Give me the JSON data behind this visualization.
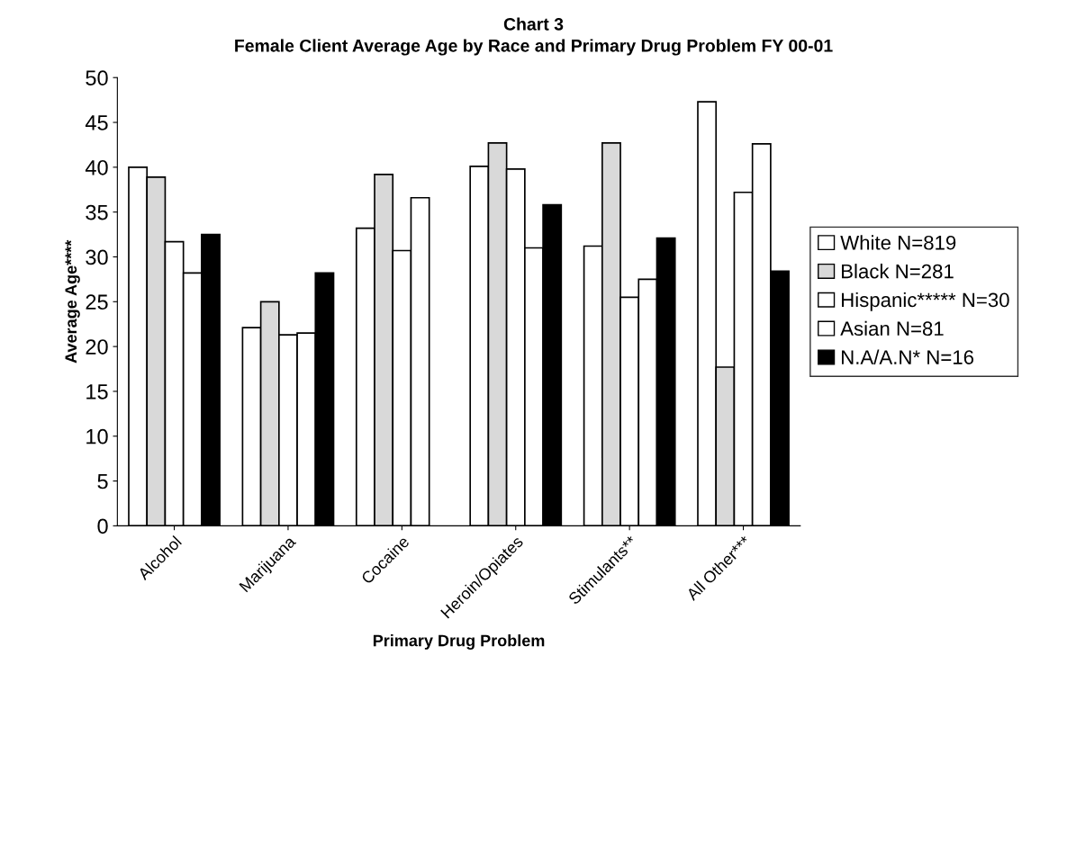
{
  "chart_data": {
    "type": "bar",
    "title": "Chart 3",
    "subtitle": "Female Client Average Age by Race and Primary Drug Problem FY 00-01",
    "xlabel": "Primary Drug Problem",
    "ylabel": "Average Age****",
    "categories": [
      "Alcohol",
      "Marijuana",
      "Cocaine",
      "Heroin/Opiates",
      "Stimulants**",
      "All Other***"
    ],
    "series": [
      {
        "name": "White N=819",
        "color": "#ffffff",
        "values": [
          40.0,
          22.1,
          33.2,
          40.1,
          31.2,
          47.3
        ]
      },
      {
        "name": "Black N=281",
        "color": "#d9d9d9",
        "values": [
          38.9,
          25.0,
          39.2,
          42.7,
          42.7,
          17.7
        ]
      },
      {
        "name": "Hispanic***** N=30",
        "color": "#ffffff",
        "values": [
          31.7,
          21.3,
          30.7,
          39.8,
          25.5,
          37.2
        ]
      },
      {
        "name": "Asian N=81",
        "color": "#ffffff",
        "values": [
          28.2,
          21.5,
          36.6,
          31.0,
          27.5,
          42.6
        ]
      },
      {
        "name": "N.A/A.N* N=16",
        "color": "#000000",
        "values": [
          32.5,
          28.2,
          null,
          35.8,
          32.1,
          28.4
        ]
      }
    ],
    "ylim": [
      0,
      50
    ],
    "yticks": [
      0,
      5,
      10,
      15,
      20,
      25,
      30,
      35,
      40,
      45,
      50
    ],
    "grid": false,
    "legend": "right"
  }
}
